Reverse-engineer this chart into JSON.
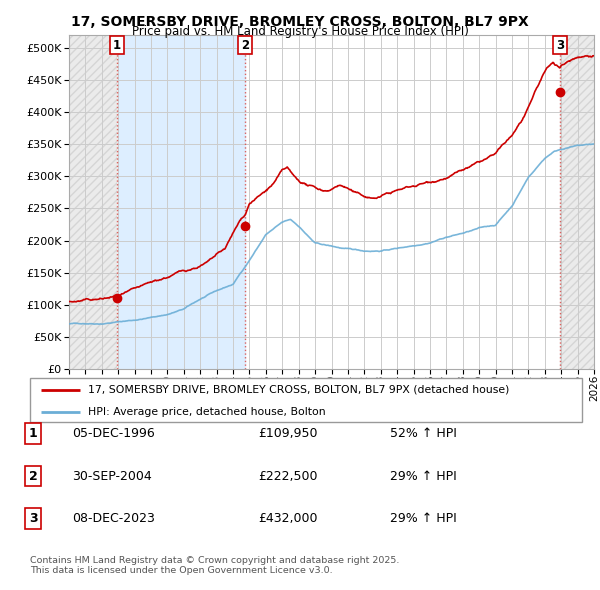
{
  "title1": "17, SOMERSBY DRIVE, BROMLEY CROSS, BOLTON, BL7 9PX",
  "title2": "Price paid vs. HM Land Registry's House Price Index (HPI)",
  "ylim": [
    0,
    520000
  ],
  "yticks": [
    0,
    50000,
    100000,
    150000,
    200000,
    250000,
    300000,
    350000,
    400000,
    450000,
    500000
  ],
  "xlim_start": 1994.0,
  "xlim_end": 2026.0,
  "sale_dates": [
    1996.92,
    2004.75,
    2023.92
  ],
  "sale_prices": [
    109950,
    222500,
    432000
  ],
  "sale_labels": [
    "1",
    "2",
    "3"
  ],
  "vline_color": "#d9534f",
  "dot_color": "#cc0000",
  "line1_color": "#cc0000",
  "line2_color": "#6baed6",
  "shading_color": "#ddeeff",
  "legend_label1": "17, SOMERSBY DRIVE, BROMLEY CROSS, BOLTON, BL7 9PX (detached house)",
  "legend_label2": "HPI: Average price, detached house, Bolton",
  "table_rows": [
    {
      "num": "1",
      "date": "05-DEC-1996",
      "price": "£109,950",
      "change": "52% ↑ HPI"
    },
    {
      "num": "2",
      "date": "30-SEP-2004",
      "price": "£222,500",
      "change": "29% ↑ HPI"
    },
    {
      "num": "3",
      "date": "08-DEC-2023",
      "price": "£432,000",
      "change": "29% ↑ HPI"
    }
  ],
  "footer": "Contains HM Land Registry data © Crown copyright and database right 2025.\nThis data is licensed under the Open Government Licence v3.0.",
  "grid_color": "#cccccc",
  "hatch_bg_color": "#e8e8e8"
}
